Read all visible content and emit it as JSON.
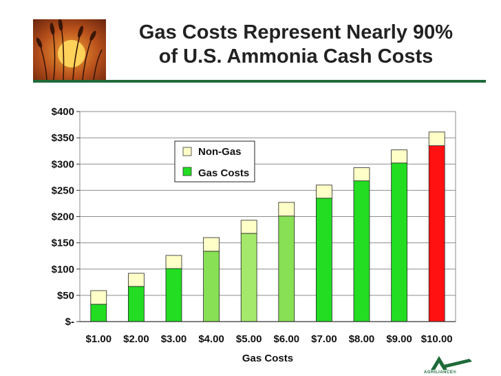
{
  "slide": {
    "title_line1": "Gas Costs Represent Nearly 90%",
    "title_line2": "of U.S. Ammonia Cash Costs",
    "brand": "AGRILIANCE®",
    "colors": {
      "rule": "#1f6b3a"
    }
  },
  "chart_data": {
    "type": "bar",
    "stacked": true,
    "categories": [
      "$1.00",
      "$2.00",
      "$3.00",
      "$4.00",
      "$5.00",
      "$6.00",
      "$7.00",
      "$8.00",
      "$9.00",
      "$10.00"
    ],
    "series": [
      {
        "name": "Gas Costs",
        "values": [
          33,
          67,
          101,
          134,
          168,
          201,
          235,
          268,
          302,
          335
        ]
      },
      {
        "name": "Non-Gas",
        "values": [
          26,
          25,
          25,
          26,
          25,
          26,
          25,
          25,
          25,
          26
        ]
      }
    ],
    "gas_bar_colors": [
      "#22dd22",
      "#22dd22",
      "#22dd22",
      "#88e055",
      "#a4e86c",
      "#88e055",
      "#22dd22",
      "#22dd22",
      "#22dd22",
      "#ff1111"
    ],
    "non_gas_color": "#ffffc8",
    "xlabel": "Gas Costs",
    "ylabel": "",
    "ylim": [
      0,
      400
    ],
    "yticks": [
      0,
      50,
      100,
      150,
      200,
      250,
      300,
      350,
      400
    ],
    "ytick_labels": [
      "$-",
      "$50",
      "$100",
      "$150",
      "$200",
      "$250",
      "$300",
      "$350",
      "$400"
    ],
    "grid": true,
    "legend_position": "upper-left",
    "legend_items": [
      {
        "label": "Non-Gas",
        "color": "#ffffc8"
      },
      {
        "label": "Gas Costs",
        "color": "#22dd22"
      }
    ]
  }
}
